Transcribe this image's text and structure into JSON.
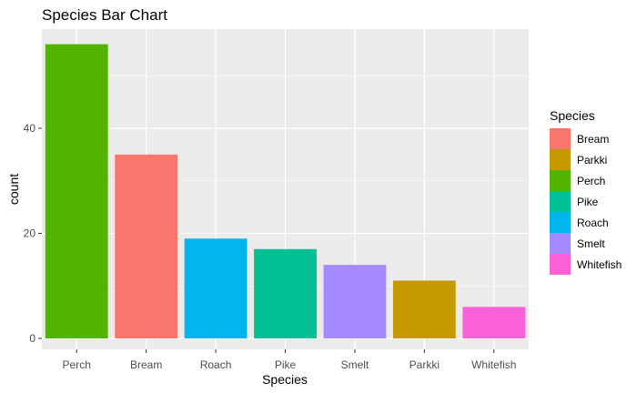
{
  "chart_data": {
    "type": "bar",
    "title": "Species Bar Chart",
    "xlabel": "Species",
    "ylabel": "count",
    "categories": [
      "Perch",
      "Bream",
      "Roach",
      "Pike",
      "Smelt",
      "Parkki",
      "Whitefish"
    ],
    "values": [
      56,
      35,
      19,
      17,
      14,
      11,
      6
    ],
    "bar_colors": [
      "#53B400",
      "#F8766D",
      "#00B6EB",
      "#00C094",
      "#A58AFF",
      "#C49A00",
      "#FB61D7"
    ],
    "ylim": [
      0,
      58.8
    ],
    "yticks": [
      0,
      20,
      40
    ],
    "grid": true,
    "panel_background": "#EBEBEB",
    "legend": {
      "title": "Species",
      "position": "right",
      "entries": [
        {
          "label": "Bream",
          "color": "#F8766D"
        },
        {
          "label": "Parkki",
          "color": "#C49A00"
        },
        {
          "label": "Perch",
          "color": "#53B400"
        },
        {
          "label": "Pike",
          "color": "#00C094"
        },
        {
          "label": "Roach",
          "color": "#00B6EB"
        },
        {
          "label": "Smelt",
          "color": "#A58AFF"
        },
        {
          "label": "Whitefish",
          "color": "#FB61D7"
        }
      ]
    }
  }
}
